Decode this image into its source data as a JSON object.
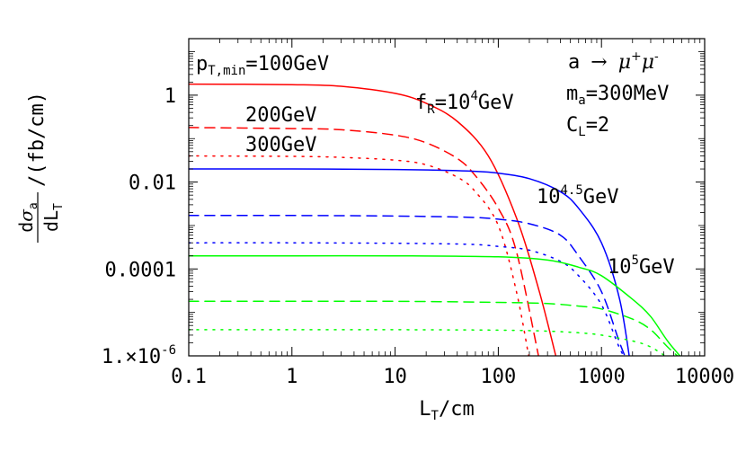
{
  "chart_data": {
    "type": "line",
    "x_scale": "log",
    "y_scale": "log",
    "xlim": [
      0.1,
      10000
    ],
    "ylim": [
      1e-06,
      20
    ],
    "grid": false,
    "xlabel": "L_T / cm",
    "ylabel": "dσ_a / dL_T / (fb/cm)",
    "x_ticks": [
      {
        "value": 0.1,
        "label": "0.1"
      },
      {
        "value": 1,
        "label": "1"
      },
      {
        "value": 10,
        "label": "10"
      },
      {
        "value": 100,
        "label": "100"
      },
      {
        "value": 1000,
        "label": "1000"
      },
      {
        "value": 10000,
        "label": "10000"
      }
    ],
    "y_ticks": [
      {
        "value": 1,
        "label": "1"
      },
      {
        "value": 0.01,
        "label": "0.01"
      },
      {
        "value": 0.0001,
        "label": "0.0001"
      },
      {
        "value": 1e-06,
        "label": "1.×10",
        "exp": "-6"
      }
    ],
    "annotations": {
      "ptmin": {
        "base": "p",
        "sub": "T,min",
        "rest": "=100GeV"
      },
      "pt200": "200GeV",
      "pt300": "300GeV",
      "process": {
        "a": "a",
        "arrow": "→",
        "mu": "μ",
        "plus": "+",
        "minus": "-"
      },
      "mass": {
        "base": "m",
        "sub": "a",
        "rest": "=300MeV"
      },
      "coupling": {
        "base": "C",
        "sub": "L",
        "rest": "=2"
      },
      "fR": {
        "base": "f",
        "sub": "R",
        "mid": "=10",
        "exp": "4",
        "rest": "GeV"
      },
      "f45": {
        "base": "10",
        "exp": "4.5",
        "rest": "GeV"
      },
      "f5": {
        "base": "10",
        "exp": "5",
        "rest": "GeV"
      }
    },
    "series": [
      {
        "color": "#ff0000",
        "dash": "solid",
        "x": [
          0.1,
          1,
          3,
          10,
          20,
          40,
          80,
          150,
          250,
          380
        ],
        "y": [
          1.8,
          1.75,
          1.6,
          1.1,
          0.65,
          0.25,
          0.04,
          0.0015,
          3e-05,
          6e-07
        ]
      },
      {
        "color": "#ff0000",
        "dash": "dashed",
        "x": [
          0.1,
          1,
          3,
          10,
          20,
          40,
          60,
          100,
          150,
          250
        ],
        "y": [
          0.18,
          0.17,
          0.16,
          0.12,
          0.08,
          0.035,
          0.014,
          0.0025,
          0.00025,
          8e-07
        ]
      },
      {
        "color": "#ff0000",
        "dash": "dotted",
        "x": [
          0.1,
          1,
          3,
          10,
          20,
          40,
          60,
          100,
          150,
          200
        ],
        "y": [
          0.04,
          0.039,
          0.037,
          0.032,
          0.025,
          0.013,
          0.006,
          0.001,
          3e-05,
          8e-07
        ]
      },
      {
        "color": "#0000ff",
        "dash": "solid",
        "x": [
          0.1,
          1,
          10,
          50,
          100,
          200,
          400,
          600,
          1000,
          1500,
          1900
        ],
        "y": [
          0.02,
          0.02,
          0.0195,
          0.018,
          0.016,
          0.012,
          0.006,
          0.0025,
          0.0004,
          2e-05,
          7e-07
        ]
      },
      {
        "color": "#0000ff",
        "dash": "dashed",
        "x": [
          0.1,
          1,
          10,
          50,
          100,
          200,
          400,
          600,
          1000,
          1500,
          1800
        ],
        "y": [
          0.0017,
          0.0017,
          0.00165,
          0.00155,
          0.0014,
          0.0011,
          0.0006,
          0.0002,
          3e-05,
          2e-06,
          7e-07
        ]
      },
      {
        "color": "#0000ff",
        "dash": "dotted",
        "x": [
          0.1,
          1,
          10,
          50,
          100,
          200,
          400,
          600,
          1000,
          1500,
          1900
        ],
        "y": [
          0.0004,
          0.0004,
          0.00039,
          0.00037,
          0.00033,
          0.00027,
          0.00015,
          7e-05,
          1.5e-05,
          1.5e-06,
          6e-07
        ]
      },
      {
        "color": "#00ff00",
        "dash": "solid",
        "x": [
          0.1,
          1,
          10,
          100,
          300,
          600,
          1000,
          2000,
          3000,
          4500,
          7000
        ],
        "y": [
          0.0002,
          0.0002,
          0.0002,
          0.00019,
          0.00016,
          0.00011,
          7e-05,
          2e-05,
          8e-06,
          2e-06,
          6e-07
        ]
      },
      {
        "color": "#00ff00",
        "dash": "dashed",
        "x": [
          0.1,
          1,
          10,
          100,
          300,
          600,
          1000,
          2000,
          3000,
          4500,
          7000
        ],
        "y": [
          1.8e-05,
          1.8e-05,
          1.8e-05,
          1.7e-05,
          1.6e-05,
          1.4e-05,
          1.2e-05,
          7e-06,
          4e-06,
          1.5e-06,
          6e-07
        ]
      },
      {
        "color": "#00ff00",
        "dash": "dotted",
        "x": [
          0.1,
          1,
          10,
          100,
          300,
          600,
          1000,
          2000,
          3000,
          4500,
          7000
        ],
        "y": [
          4e-06,
          4e-06,
          4e-06,
          3.9e-06,
          3.7e-06,
          3.4e-06,
          3e-06,
          2.2e-06,
          1.6e-06,
          9e-07,
          6e-07
        ]
      }
    ]
  }
}
